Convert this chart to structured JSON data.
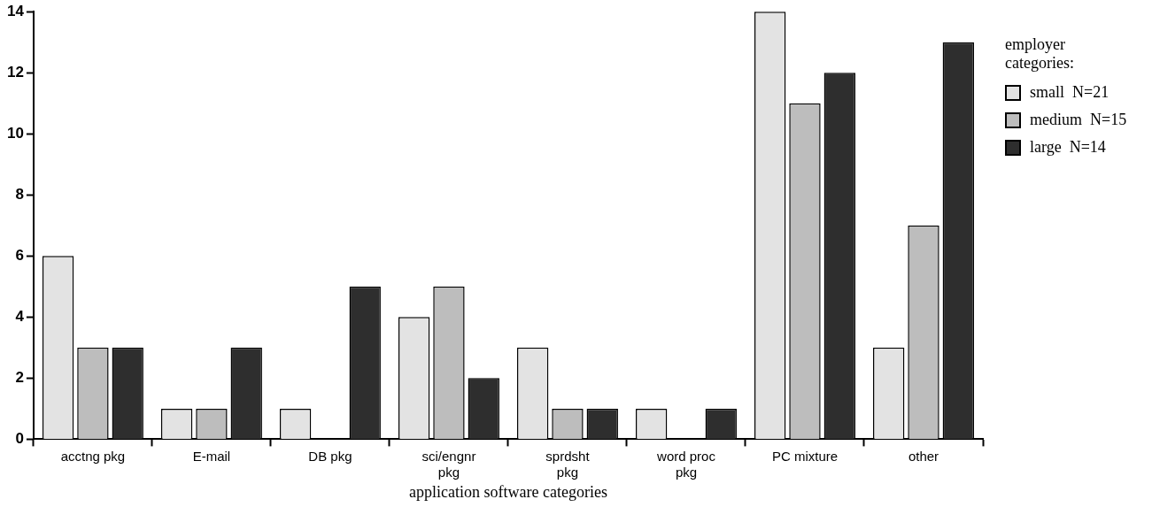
{
  "chart_data": {
    "type": "bar",
    "xlabel": "application software categories",
    "legend_title": "employer categories:",
    "legend": "right",
    "grid": false,
    "categories": [
      "acctng pkg",
      "E-mail",
      "DB pkg",
      "sci/engnr\npkg",
      "sprdsht\npkg",
      "word proc\npkg",
      "PC mixture",
      "other"
    ],
    "ylim": [
      0,
      14
    ],
    "yticks": [
      0,
      2,
      4,
      6,
      8,
      10,
      12,
      14
    ],
    "series": [
      {
        "name": "small  N=21",
        "color": "#e3e3e3",
        "values": [
          6,
          1,
          1,
          4,
          3,
          1,
          14,
          3
        ]
      },
      {
        "name": "medium  N=15",
        "color": "#bdbdbd",
        "values": [
          3,
          1,
          0,
          5,
          1,
          0,
          11,
          7
        ]
      },
      {
        "name": "large  N=14",
        "color": "#2e2e2e",
        "values": [
          3,
          3,
          5,
          2,
          1,
          1,
          12,
          13
        ]
      }
    ]
  }
}
